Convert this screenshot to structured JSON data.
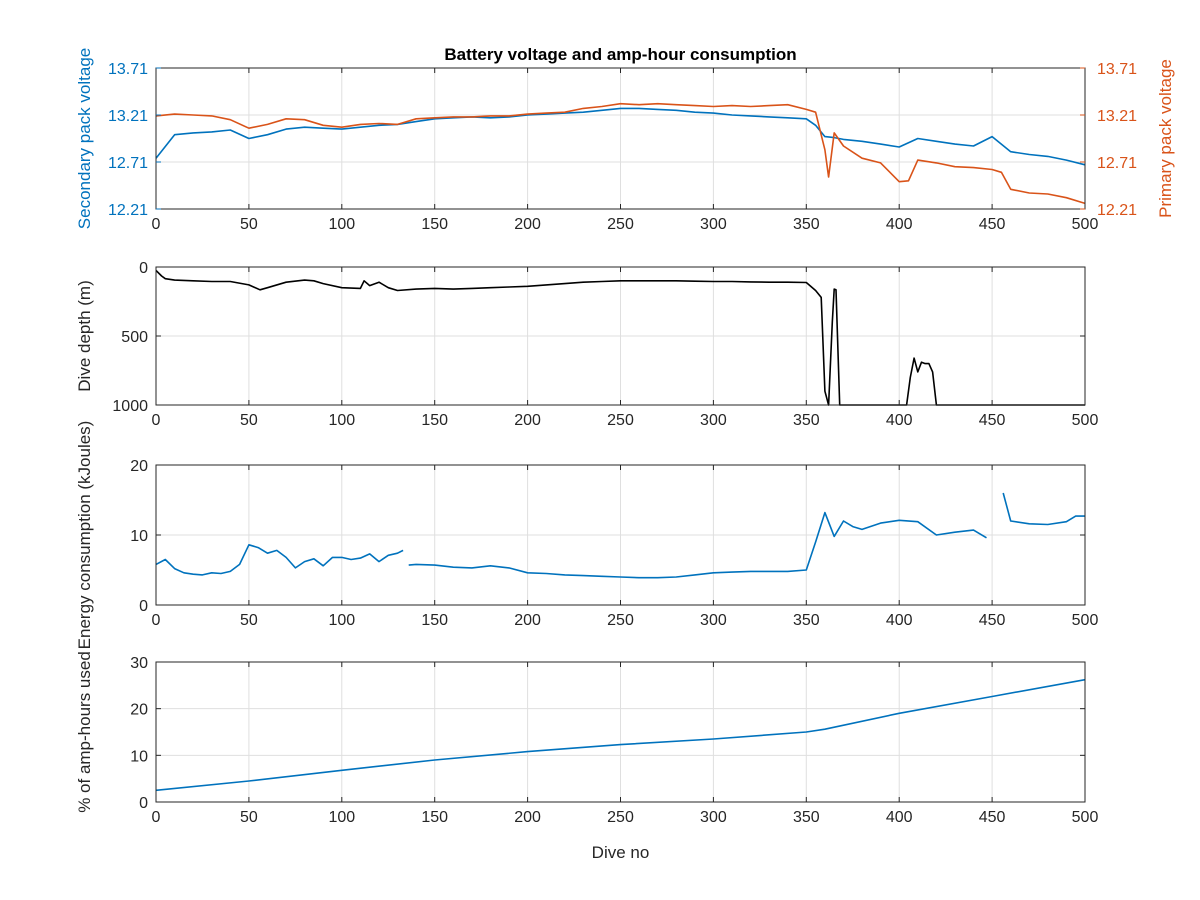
{
  "colors": {
    "blue": "#0072bd",
    "orange": "#d95319",
    "black": "#000000",
    "axis": "#262626",
    "grid": "#dfdfdf"
  },
  "chart_data": [
    {
      "type": "line",
      "title": "Battery voltage and amp-hour consumption",
      "xlabel": "",
      "ylabel": "Secondary pack voltage",
      "y2label": "Primary pack voltage",
      "xlim": [
        0,
        500
      ],
      "ylim": [
        12.21,
        13.71
      ],
      "y2lim": [
        12.21,
        13.71
      ],
      "xticks": [
        "0",
        "50",
        "100",
        "150",
        "200",
        "250",
        "300",
        "350",
        "400",
        "450",
        "500"
      ],
      "yticks": [
        "12.21",
        "12.71",
        "13.21",
        "13.71"
      ],
      "y2ticks": [
        "12.21",
        "12.71",
        "13.21",
        "13.71"
      ],
      "grid": true,
      "series": [
        {
          "axis": "left",
          "color": "#0072bd",
          "x": [
            0,
            10,
            20,
            30,
            40,
            50,
            60,
            70,
            80,
            90,
            100,
            110,
            120,
            130,
            140,
            150,
            160,
            170,
            180,
            190,
            200,
            210,
            220,
            230,
            240,
            250,
            260,
            270,
            280,
            290,
            300,
            310,
            320,
            330,
            340,
            350,
            355,
            360,
            365,
            370,
            380,
            390,
            400,
            410,
            420,
            430,
            440,
            450,
            460,
            470,
            480,
            490,
            500
          ],
          "y": [
            12.75,
            13.0,
            13.02,
            13.03,
            13.05,
            12.96,
            13.0,
            13.06,
            13.08,
            13.07,
            13.06,
            13.08,
            13.1,
            13.11,
            13.14,
            13.17,
            13.18,
            13.19,
            13.18,
            13.19,
            13.21,
            13.22,
            13.23,
            13.24,
            13.26,
            13.28,
            13.28,
            13.27,
            13.26,
            13.24,
            13.23,
            13.21,
            13.2,
            13.19,
            13.18,
            13.17,
            13.1,
            12.98,
            12.97,
            12.95,
            12.93,
            12.9,
            12.87,
            12.96,
            12.93,
            12.9,
            12.88,
            12.98,
            12.82,
            12.79,
            12.77,
            12.73,
            12.68
          ]
        },
        {
          "axis": "right",
          "color": "#d95319",
          "x": [
            0,
            10,
            20,
            30,
            40,
            50,
            60,
            70,
            80,
            90,
            100,
            110,
            120,
            130,
            140,
            150,
            160,
            170,
            180,
            190,
            200,
            210,
            220,
            230,
            240,
            250,
            260,
            270,
            280,
            290,
            300,
            310,
            320,
            330,
            340,
            350,
            355,
            360,
            362,
            365,
            370,
            380,
            390,
            400,
            405,
            410,
            420,
            430,
            440,
            450,
            455,
            460,
            470,
            480,
            490,
            500
          ],
          "y": [
            13.2,
            13.22,
            13.21,
            13.2,
            13.16,
            13.07,
            13.11,
            13.17,
            13.16,
            13.1,
            13.08,
            13.11,
            13.12,
            13.11,
            13.17,
            13.18,
            13.19,
            13.19,
            13.2,
            13.2,
            13.22,
            13.23,
            13.24,
            13.28,
            13.3,
            13.33,
            13.32,
            13.33,
            13.32,
            13.31,
            13.3,
            13.31,
            13.3,
            13.31,
            13.32,
            13.27,
            13.24,
            12.84,
            12.55,
            13.02,
            12.88,
            12.75,
            12.7,
            12.5,
            12.51,
            12.73,
            12.7,
            12.66,
            12.65,
            12.63,
            12.6,
            12.42,
            12.38,
            12.37,
            12.33,
            12.27
          ]
        }
      ]
    },
    {
      "type": "line",
      "title": "",
      "xlabel": "",
      "ylabel": "Dive depth (m)",
      "xlim": [
        0,
        500
      ],
      "ylim": [
        0,
        1000
      ],
      "y_reversed": true,
      "xticks": [
        "0",
        "50",
        "100",
        "150",
        "200",
        "250",
        "300",
        "350",
        "400",
        "450",
        "500"
      ],
      "yticks": [
        "0",
        "500",
        "1000"
      ],
      "grid": true,
      "series": [
        {
          "color": "#000000",
          "x": [
            0,
            3,
            5,
            10,
            20,
            30,
            40,
            50,
            56,
            60,
            70,
            80,
            85,
            90,
            100,
            110,
            112,
            115,
            120,
            125,
            130,
            140,
            150,
            160,
            170,
            180,
            190,
            200,
            210,
            220,
            230,
            240,
            250,
            260,
            270,
            280,
            290,
            300,
            310,
            320,
            330,
            340,
            350,
            355,
            358,
            360,
            362,
            364,
            365,
            366,
            368,
            370,
            380,
            400,
            404,
            406,
            408,
            410,
            412,
            414,
            416,
            418,
            420,
            430,
            440,
            450,
            460,
            470,
            480,
            490,
            500
          ],
          "y": [
            25,
            65,
            85,
            95,
            100,
            105,
            105,
            130,
            165,
            150,
            110,
            95,
            100,
            120,
            150,
            155,
            100,
            135,
            110,
            150,
            170,
            160,
            155,
            160,
            155,
            150,
            145,
            140,
            130,
            120,
            110,
            105,
            100,
            100,
            100,
            100,
            103,
            105,
            105,
            108,
            110,
            110,
            112,
            170,
            220,
            900,
            1000,
            400,
            160,
            165,
            1000,
            1000,
            1000,
            1000,
            1000,
            800,
            660,
            760,
            690,
            700,
            700,
            760,
            1000,
            1000,
            1000,
            1000,
            1000,
            1000,
            1000,
            1000,
            1000
          ]
        }
      ]
    },
    {
      "type": "line",
      "title": "",
      "xlabel": "",
      "ylabel": "Energy consumption (kJoules)",
      "xlim": [
        0,
        500
      ],
      "ylim": [
        0,
        20
      ],
      "xticks": [
        "0",
        "50",
        "100",
        "150",
        "200",
        "250",
        "300",
        "350",
        "400",
        "450",
        "500"
      ],
      "yticks": [
        "0",
        "10",
        "20"
      ],
      "grid": true,
      "series": [
        {
          "color": "#0072bd",
          "segments": [
            {
              "x": [
                0,
                5,
                10,
                15,
                20,
                25,
                30,
                35,
                40,
                45,
                50,
                55,
                60,
                65,
                70,
                75,
                80,
                85,
                90,
                95,
                100,
                105,
                110,
                115,
                120,
                125,
                130,
                133
              ],
              "y": [
                5.8,
                6.5,
                5.2,
                4.6,
                4.4,
                4.3,
                4.6,
                4.5,
                4.8,
                5.8,
                8.6,
                8.2,
                7.4,
                7.8,
                6.8,
                5.3,
                6.2,
                6.6,
                5.6,
                6.8,
                6.8,
                6.5,
                6.7,
                7.3,
                6.2,
                7.1,
                7.4,
                7.8
              ]
            },
            {
              "x": [
                136,
                140,
                150,
                160,
                170,
                180,
                190,
                200,
                210,
                220,
                230,
                240,
                250,
                260,
                270,
                280,
                290,
                300,
                310,
                320,
                330,
                340,
                350,
                355,
                360,
                365,
                370,
                375,
                380,
                390,
                400,
                410,
                420,
                430,
                440,
                447
              ],
              "y": [
                5.7,
                5.8,
                5.7,
                5.4,
                5.3,
                5.6,
                5.3,
                4.6,
                4.5,
                4.3,
                4.2,
                4.1,
                4.0,
                3.9,
                3.9,
                4.0,
                4.3,
                4.6,
                4.7,
                4.8,
                4.8,
                4.8,
                5.0,
                9.0,
                13.2,
                9.8,
                12.0,
                11.2,
                10.8,
                11.7,
                12.1,
                11.9,
                10.0,
                10.4,
                10.7,
                9.6
              ]
            },
            {
              "x": [
                456,
                460,
                470,
                480,
                490,
                495,
                500
              ],
              "y": [
                16.0,
                12.0,
                11.6,
                11.5,
                11.9,
                12.7,
                12.7
              ]
            }
          ]
        }
      ]
    },
    {
      "type": "line",
      "title": "",
      "xlabel": "Dive no",
      "ylabel": "% of amp-hours used",
      "xlim": [
        0,
        500
      ],
      "ylim": [
        0,
        30
      ],
      "xticks": [
        "0",
        "50",
        "100",
        "150",
        "200",
        "250",
        "300",
        "350",
        "400",
        "450",
        "500"
      ],
      "yticks": [
        "0",
        "10",
        "20",
        "30"
      ],
      "grid": true,
      "series": [
        {
          "color": "#0072bd",
          "x": [
            0,
            50,
            100,
            150,
            200,
            250,
            300,
            350,
            360,
            400,
            450,
            500
          ],
          "y": [
            2.5,
            4.5,
            6.8,
            9.0,
            10.8,
            12.3,
            13.5,
            15.0,
            15.6,
            19.0,
            22.6,
            26.2
          ]
        }
      ]
    }
  ]
}
